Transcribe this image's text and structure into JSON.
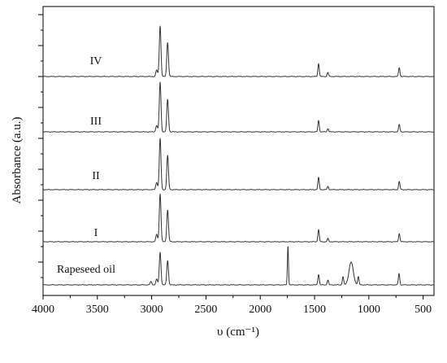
{
  "chart_data": {
    "type": "line",
    "title": "",
    "xlabel": "υ (cm⁻¹)",
    "ylabel": "Absorbance (a.u.)",
    "xlim": [
      4000,
      400
    ],
    "x_reversed": true,
    "x_ticks": [
      4000,
      3500,
      3000,
      2500,
      2000,
      1500,
      1000,
      500
    ],
    "x_tick_labels": [
      "4000",
      "3500",
      "3000",
      "2500",
      "2000",
      "1500",
      "1000",
      "500"
    ],
    "y_tick_labels_shown": false,
    "grid": false,
    "legend": "none",
    "colors": {
      "line": "#333333",
      "axis": "#000000",
      "text": "#111111"
    },
    "baseline": {
      "x": [
        4000,
        400
      ],
      "y": [
        0,
        0
      ]
    },
    "series": [
      {
        "name": "IV",
        "peaks": [
          {
            "x": 2954,
            "y": 0.08
          },
          {
            "x": 2922,
            "y": 0.62
          },
          {
            "x": 2853,
            "y": 0.42
          },
          {
            "x": 1463,
            "y": 0.16
          },
          {
            "x": 1377,
            "y": 0.05
          },
          {
            "x": 720,
            "y": 0.11
          }
        ]
      },
      {
        "name": "III",
        "peaks": [
          {
            "x": 2954,
            "y": 0.08
          },
          {
            "x": 2922,
            "y": 0.61
          },
          {
            "x": 2853,
            "y": 0.4
          },
          {
            "x": 1463,
            "y": 0.14
          },
          {
            "x": 1377,
            "y": 0.04
          },
          {
            "x": 720,
            "y": 0.09
          }
        ]
      },
      {
        "name": "II",
        "peaks": [
          {
            "x": 2954,
            "y": 0.09
          },
          {
            "x": 2922,
            "y": 0.63
          },
          {
            "x": 2853,
            "y": 0.42
          },
          {
            "x": 1463,
            "y": 0.15
          },
          {
            "x": 1377,
            "y": 0.04
          },
          {
            "x": 720,
            "y": 0.1
          }
        ]
      },
      {
        "name": "I",
        "peaks": [
          {
            "x": 2954,
            "y": 0.09
          },
          {
            "x": 2922,
            "y": 0.59
          },
          {
            "x": 2853,
            "y": 0.39
          },
          {
            "x": 1463,
            "y": 0.15
          },
          {
            "x": 1377,
            "y": 0.04
          },
          {
            "x": 720,
            "y": 0.1
          }
        ]
      },
      {
        "name": "Rapeseed oil",
        "peaks": [
          {
            "x": 3006,
            "y": 0.04
          },
          {
            "x": 2954,
            "y": 0.07
          },
          {
            "x": 2922,
            "y": 0.4
          },
          {
            "x": 2853,
            "y": 0.3
          },
          {
            "x": 1745,
            "y": 0.48
          },
          {
            "x": 1463,
            "y": 0.13
          },
          {
            "x": 1377,
            "y": 0.06
          },
          {
            "x": 1238,
            "y": 0.1
          },
          {
            "x": 1163,
            "y": 0.28
          },
          {
            "x": 1097,
            "y": 0.1
          },
          {
            "x": 722,
            "y": 0.14
          }
        ]
      }
    ]
  }
}
